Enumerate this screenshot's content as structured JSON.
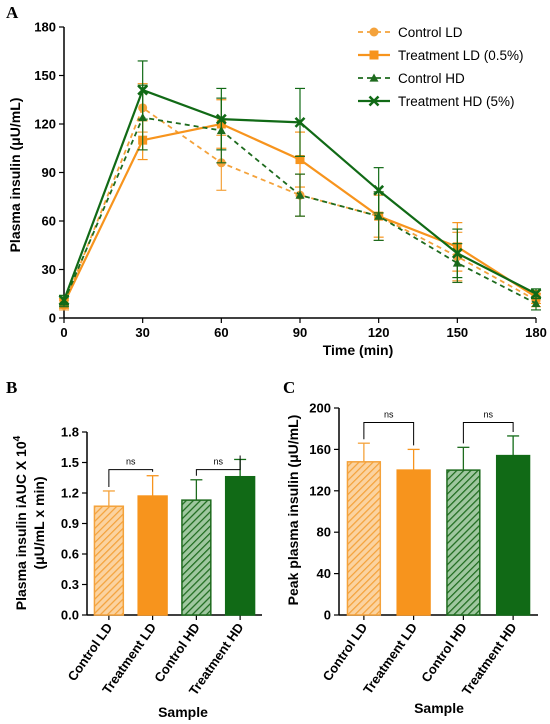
{
  "colors": {
    "light_orange": "#F4A23B",
    "orange": "#F7941D",
    "dark_green": "#1E6B1E",
    "green": "#116A16",
    "axis": "#000000"
  },
  "chart_data": [
    {
      "panel": "A",
      "type": "line",
      "xlabel": "Time (min)",
      "ylabel": "Plasma insulin (μU/mL)",
      "x": [
        0,
        30,
        60,
        90,
        120,
        150,
        180
      ],
      "xlim": [
        0,
        180
      ],
      "ylim": [
        0,
        180
      ],
      "xticks": [
        "0",
        "30",
        "60",
        "90",
        "120",
        "150",
        "180"
      ],
      "yticks": [
        "0",
        "30",
        "60",
        "90",
        "120",
        "150",
        "180"
      ],
      "legend_position": "top-right",
      "series": [
        {
          "name": "Control LD",
          "style": "dashed",
          "marker": "circle",
          "color": "#F4A23B",
          "values": [
            8,
            130,
            96,
            76,
            63,
            38,
            11
          ],
          "error": [
            3,
            15,
            17,
            13,
            15,
            15,
            4
          ]
        },
        {
          "name": "Treatment LD (0.5%)",
          "style": "solid",
          "marker": "square",
          "color": "#F7941D",
          "values": [
            9,
            110,
            120,
            98,
            63,
            44,
            13
          ],
          "error": [
            3,
            12,
            15,
            17,
            13,
            15,
            4
          ]
        },
        {
          "name": "Control HD",
          "style": "dashed",
          "marker": "triangle",
          "color": "#1E6B1E",
          "values": [
            10,
            124,
            116,
            76,
            63,
            34,
            9
          ],
          "error": [
            3,
            20,
            20,
            13,
            15,
            12,
            4
          ]
        },
        {
          "name": "Treatment HD (5%)",
          "style": "solid",
          "marker": "x",
          "color": "#116A16",
          "values": [
            11,
            141,
            123,
            121,
            79,
            40,
            15
          ],
          "error": [
            3,
            18,
            19,
            21,
            14,
            15,
            3
          ]
        }
      ]
    },
    {
      "panel": "B",
      "type": "bar",
      "xlabel": "Sample",
      "ylabel_lines": [
        "Plasma insulin iAUC X 10",
        "(μU/mL x min)"
      ],
      "ylabel_superscript": "4",
      "categories": [
        "Control LD",
        "Treatment LD",
        "Control HD",
        "Treatment HD"
      ],
      "values": [
        1.07,
        1.17,
        1.13,
        1.36
      ],
      "error": [
        0.15,
        0.2,
        0.2,
        0.17
      ],
      "patterns": [
        "hatch",
        "solid",
        "hatch",
        "solid"
      ],
      "colors": [
        "#F4A23B",
        "#F7941D",
        "#1E6B1E",
        "#116A16"
      ],
      "ylim": [
        0,
        1.8
      ],
      "yticks": [
        "0.0",
        "0.3",
        "0.6",
        "0.9",
        "1.2",
        "1.5",
        "1.8"
      ],
      "brackets": [
        {
          "from": 0,
          "to": 1,
          "label": "ns",
          "level": 1.43
        },
        {
          "from": 2,
          "to": 3,
          "label": "ns",
          "level": 1.43
        }
      ]
    },
    {
      "panel": "C",
      "type": "bar",
      "xlabel": "Sample",
      "ylabel_lines": [
        "Peak plasma insulin (μU/mL)"
      ],
      "categories": [
        "Control LD",
        "Treatment LD",
        "Control HD",
        "Treatment HD"
      ],
      "values": [
        148,
        140,
        140,
        154
      ],
      "error": [
        18,
        20,
        22,
        19
      ],
      "patterns": [
        "hatch",
        "solid",
        "hatch",
        "solid"
      ],
      "colors": [
        "#F4A23B",
        "#F7941D",
        "#1E6B1E",
        "#116A16"
      ],
      "ylim": [
        0,
        200
      ],
      "yticks": [
        "0",
        "40",
        "80",
        "120",
        "160",
        "200"
      ],
      "brackets": [
        {
          "from": 0,
          "to": 1,
          "label": "ns",
          "level": 186
        },
        {
          "from": 2,
          "to": 3,
          "label": "ns",
          "level": 186
        }
      ]
    }
  ]
}
